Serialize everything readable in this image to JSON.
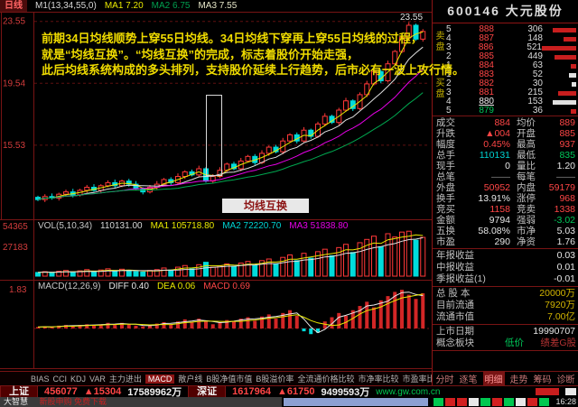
{
  "topbar": {
    "period": "日线",
    "ma_set": "M1(13,34,55,0)",
    "ma1": "MA1 7.20",
    "ma2": "MA2 6.75",
    "ma3": "MA3 7.55",
    "peak": "23.55"
  },
  "annotation": {
    "line1": "前期34日均线顺势上穿55日均线。34日均线下穿再上穿55日均线的过程，",
    "line2": "就是“均线互换”。“均线互换”的完成，标志着股价开始走强，",
    "line3": "此后均线系统构成的多头排列，支持股价延续上行趋势，后市必有一波上攻行情。",
    "callout": "均线互换"
  },
  "vol_label": {
    "name": "VOL(5,10,34)",
    "value": "110131.00",
    "ma1": "MA1 105718.80",
    "ma2": "MA2 72220.70",
    "ma3": "MA3 51838.80"
  },
  "macd_label": {
    "name": "MACD(12,26,9)",
    "diff": "DIFF 0.40",
    "dea": "DEA 0.06",
    "macd": "MACD 0.69"
  },
  "indicator_tabs": {
    "items": [
      "BIAS",
      "CCI",
      "KDJ",
      "VAR",
      "主力进出",
      "MACD",
      "散户线",
      "B股净值市值",
      "B股溢价率",
      "全流通价格比较",
      "市净率比较",
      "市盈率比较"
    ],
    "selected": "MACD",
    "page": "003"
  },
  "sidebar": {
    "title": "600146 大元股份",
    "order_book": {
      "sell_label": "卖盘",
      "buy_label": "买盘",
      "rows": [
        {
          "n": "5",
          "price": "888",
          "vol": "306",
          "tone": "up",
          "bar": 26,
          "barTone": "r"
        },
        {
          "n": "4",
          "price": "887",
          "vol": "148",
          "tone": "up",
          "bar": 14,
          "barTone": "r"
        },
        {
          "n": "3",
          "price": "886",
          "vol": "521",
          "tone": "up",
          "bar": 38,
          "barTone": "r"
        },
        {
          "n": "2",
          "price": "885",
          "vol": "449",
          "tone": "up",
          "bar": 24,
          "barTone": "r"
        },
        {
          "n": "1",
          "price": "884",
          "vol": "63",
          "tone": "up",
          "bar": 6,
          "barTone": "r"
        },
        {
          "n": "1",
          "price": "883",
          "vol": "52",
          "tone": "up",
          "bar": 8,
          "barTone": "w"
        },
        {
          "n": "2",
          "price": "882",
          "vol": "30",
          "tone": "up",
          "bar": 5,
          "barTone": "w"
        },
        {
          "n": "3",
          "price": "881",
          "vol": "215",
          "tone": "up",
          "bar": 20,
          "barTone": "r"
        },
        {
          "n": "4",
          "price": "880",
          "vol": "153",
          "tone": "flat",
          "bar": 26,
          "barTone": "w"
        },
        {
          "n": "5",
          "price": "879",
          "vol": "36",
          "tone": "down",
          "bar": 6,
          "barTone": "r"
        }
      ]
    },
    "info": [
      {
        "l": "成交",
        "v": "884",
        "t": "up",
        "l2": "均价",
        "v2": "889",
        "t2": "up"
      },
      {
        "l": "升跌",
        "v": "▲004",
        "t": "up",
        "l2": "开盘",
        "v2": "885",
        "t2": "up"
      },
      {
        "l": "幅度",
        "v": "0.45%",
        "t": "up",
        "l2": "最高",
        "v2": "937",
        "t2": "up"
      },
      {
        "l": "总手",
        "v": "110131",
        "t": "vol",
        "l2": "最低",
        "v2": "835",
        "t2": "down"
      },
      {
        "l": "现手",
        "v": "0",
        "t": "neutral",
        "l2": "量比",
        "v2": "1.20",
        "t2": "neutral"
      },
      {
        "l": "总笔",
        "v": "——",
        "t": "dim",
        "l2": "每笔",
        "v2": "——",
        "t2": "dim"
      },
      {
        "l": "外盘",
        "v": "50952",
        "t": "up",
        "l2": "内盘",
        "v2": "59179",
        "t2": "up"
      },
      {
        "l": "换手",
        "v": "13.91%",
        "t": "neutral",
        "l2": "涨停",
        "v2": "968",
        "t2": "up"
      },
      {
        "l": "竞买",
        "v": "1158",
        "t": "up",
        "l2": "竞卖",
        "v2": "1338",
        "t2": "up"
      },
      {
        "l": "金额",
        "v": "9794",
        "t": "neutral",
        "l2": "强弱",
        "v2": "-3.02",
        "t2": "down"
      },
      {
        "l": "五换",
        "v": "58.08%",
        "t": "neutral",
        "l2": "市净",
        "v2": "5.03",
        "t2": "neutral"
      },
      {
        "l": "市盈",
        "v": "290",
        "t": "neutral",
        "l2": "净资",
        "v2": "1.76",
        "t2": "neutral"
      }
    ],
    "info_single": [
      {
        "l": "年报收益",
        "v": "0.03",
        "t": "neutral"
      },
      {
        "l": "中报收益",
        "v": "0.01",
        "t": "neutral"
      },
      {
        "l": "季报收益(1)",
        "v": "-0.01",
        "t": "neutral"
      }
    ],
    "capital": [
      {
        "l": "总 股 本",
        "v": "20000万",
        "t": "cap"
      },
      {
        "l": "目前流通",
        "v": "7920万",
        "t": "cap"
      },
      {
        "l": "流通市值",
        "v": "7.00亿",
        "t": "cap"
      }
    ],
    "listing": [
      {
        "l": "上市日期",
        "v": "19990707",
        "t": "neutral"
      }
    ],
    "concept": {
      "l": "概念板块",
      "tag1": "低价",
      "tag2": "绩差G股"
    },
    "tabs": {
      "items": [
        "分时",
        "逐笔",
        "明细",
        "走势",
        "筹码",
        "诊断"
      ],
      "selected": "明细"
    }
  },
  "statusbar": {
    "sh_label": "上证",
    "sh_index": "456077",
    "sh_change": "▲15304",
    "sh_amount": "17589962万",
    "sz_label": "深证",
    "sz_index": "1617964",
    "sz_change": "▲61750",
    "sz_amount": "9499593万",
    "url": "www.gw.com.cn"
  },
  "bottombar": {
    "brand": "大智慧",
    "promo": "新股申购 免费下载",
    "blocks": [
      "#00c850",
      "#d22020",
      "#d22020",
      "#e8e8e8",
      "#00c850",
      "#d22020",
      "#00c850",
      "#e8e8e8",
      "#d22020",
      "#00c850"
    ],
    "clock": "16:28"
  },
  "chart_data": {
    "type": "candlestick",
    "title": "600146 大元股份 日线",
    "x_count": 56,
    "price_ylim": [
      10.9,
      24.0
    ],
    "price_gridlines": [
      23.55,
      19.54,
      15.53
    ],
    "vol_axis": [
      "54365",
      "27183"
    ],
    "macd_axis": [
      "1.83"
    ],
    "closes": [
      12.0,
      12.2,
      12.1,
      12.35,
      12.5,
      12.3,
      12.6,
      12.8,
      12.6,
      12.9,
      13.1,
      12.9,
      13.2,
      13.0,
      12.7,
      12.5,
      12.8,
      13.0,
      13.3,
      13.1,
      13.5,
      13.8,
      13.6,
      14.0,
      13.2,
      13.5,
      13.9,
      14.3,
      14.0,
      14.5,
      14.8,
      14.4,
      15.0,
      15.4,
      15.1,
      15.8,
      16.2,
      15.8,
      16.5,
      16.1,
      16.9,
      17.4,
      17.0,
      17.8,
      18.4,
      17.9,
      18.8,
      19.5,
      20.3,
      19.7,
      20.8,
      21.6,
      22.5,
      23.3,
      22.4,
      22.9
    ],
    "volumes": [
      9000,
      11000,
      8000,
      12000,
      14000,
      9000,
      13000,
      16000,
      10000,
      15000,
      18000,
      12000,
      17000,
      13000,
      11000,
      10000,
      14000,
      16000,
      20000,
      15000,
      22000,
      26000,
      18000,
      28000,
      34000,
      22000,
      25000,
      30000,
      24000,
      32000,
      36000,
      26000,
      38000,
      42000,
      30000,
      46000,
      52000,
      38000,
      56000,
      44000,
      60000,
      66000,
      50000,
      70000,
      78000,
      58000,
      82000,
      90000,
      98000,
      72000,
      104000,
      96000,
      108000,
      110131,
      88000,
      95000
    ],
    "macd_hist": [
      2,
      3,
      2,
      4,
      5,
      3,
      5,
      6,
      4,
      6,
      8,
      5,
      8,
      6,
      4,
      3,
      5,
      7,
      9,
      6,
      10,
      13,
      9,
      14,
      10,
      6,
      9,
      12,
      10,
      14,
      16,
      11,
      17,
      20,
      14,
      22,
      26,
      18,
      -4,
      -8,
      -6,
      10,
      16,
      22,
      18,
      26,
      32,
      38,
      30,
      40,
      46,
      52,
      55,
      48,
      42,
      50
    ]
  }
}
